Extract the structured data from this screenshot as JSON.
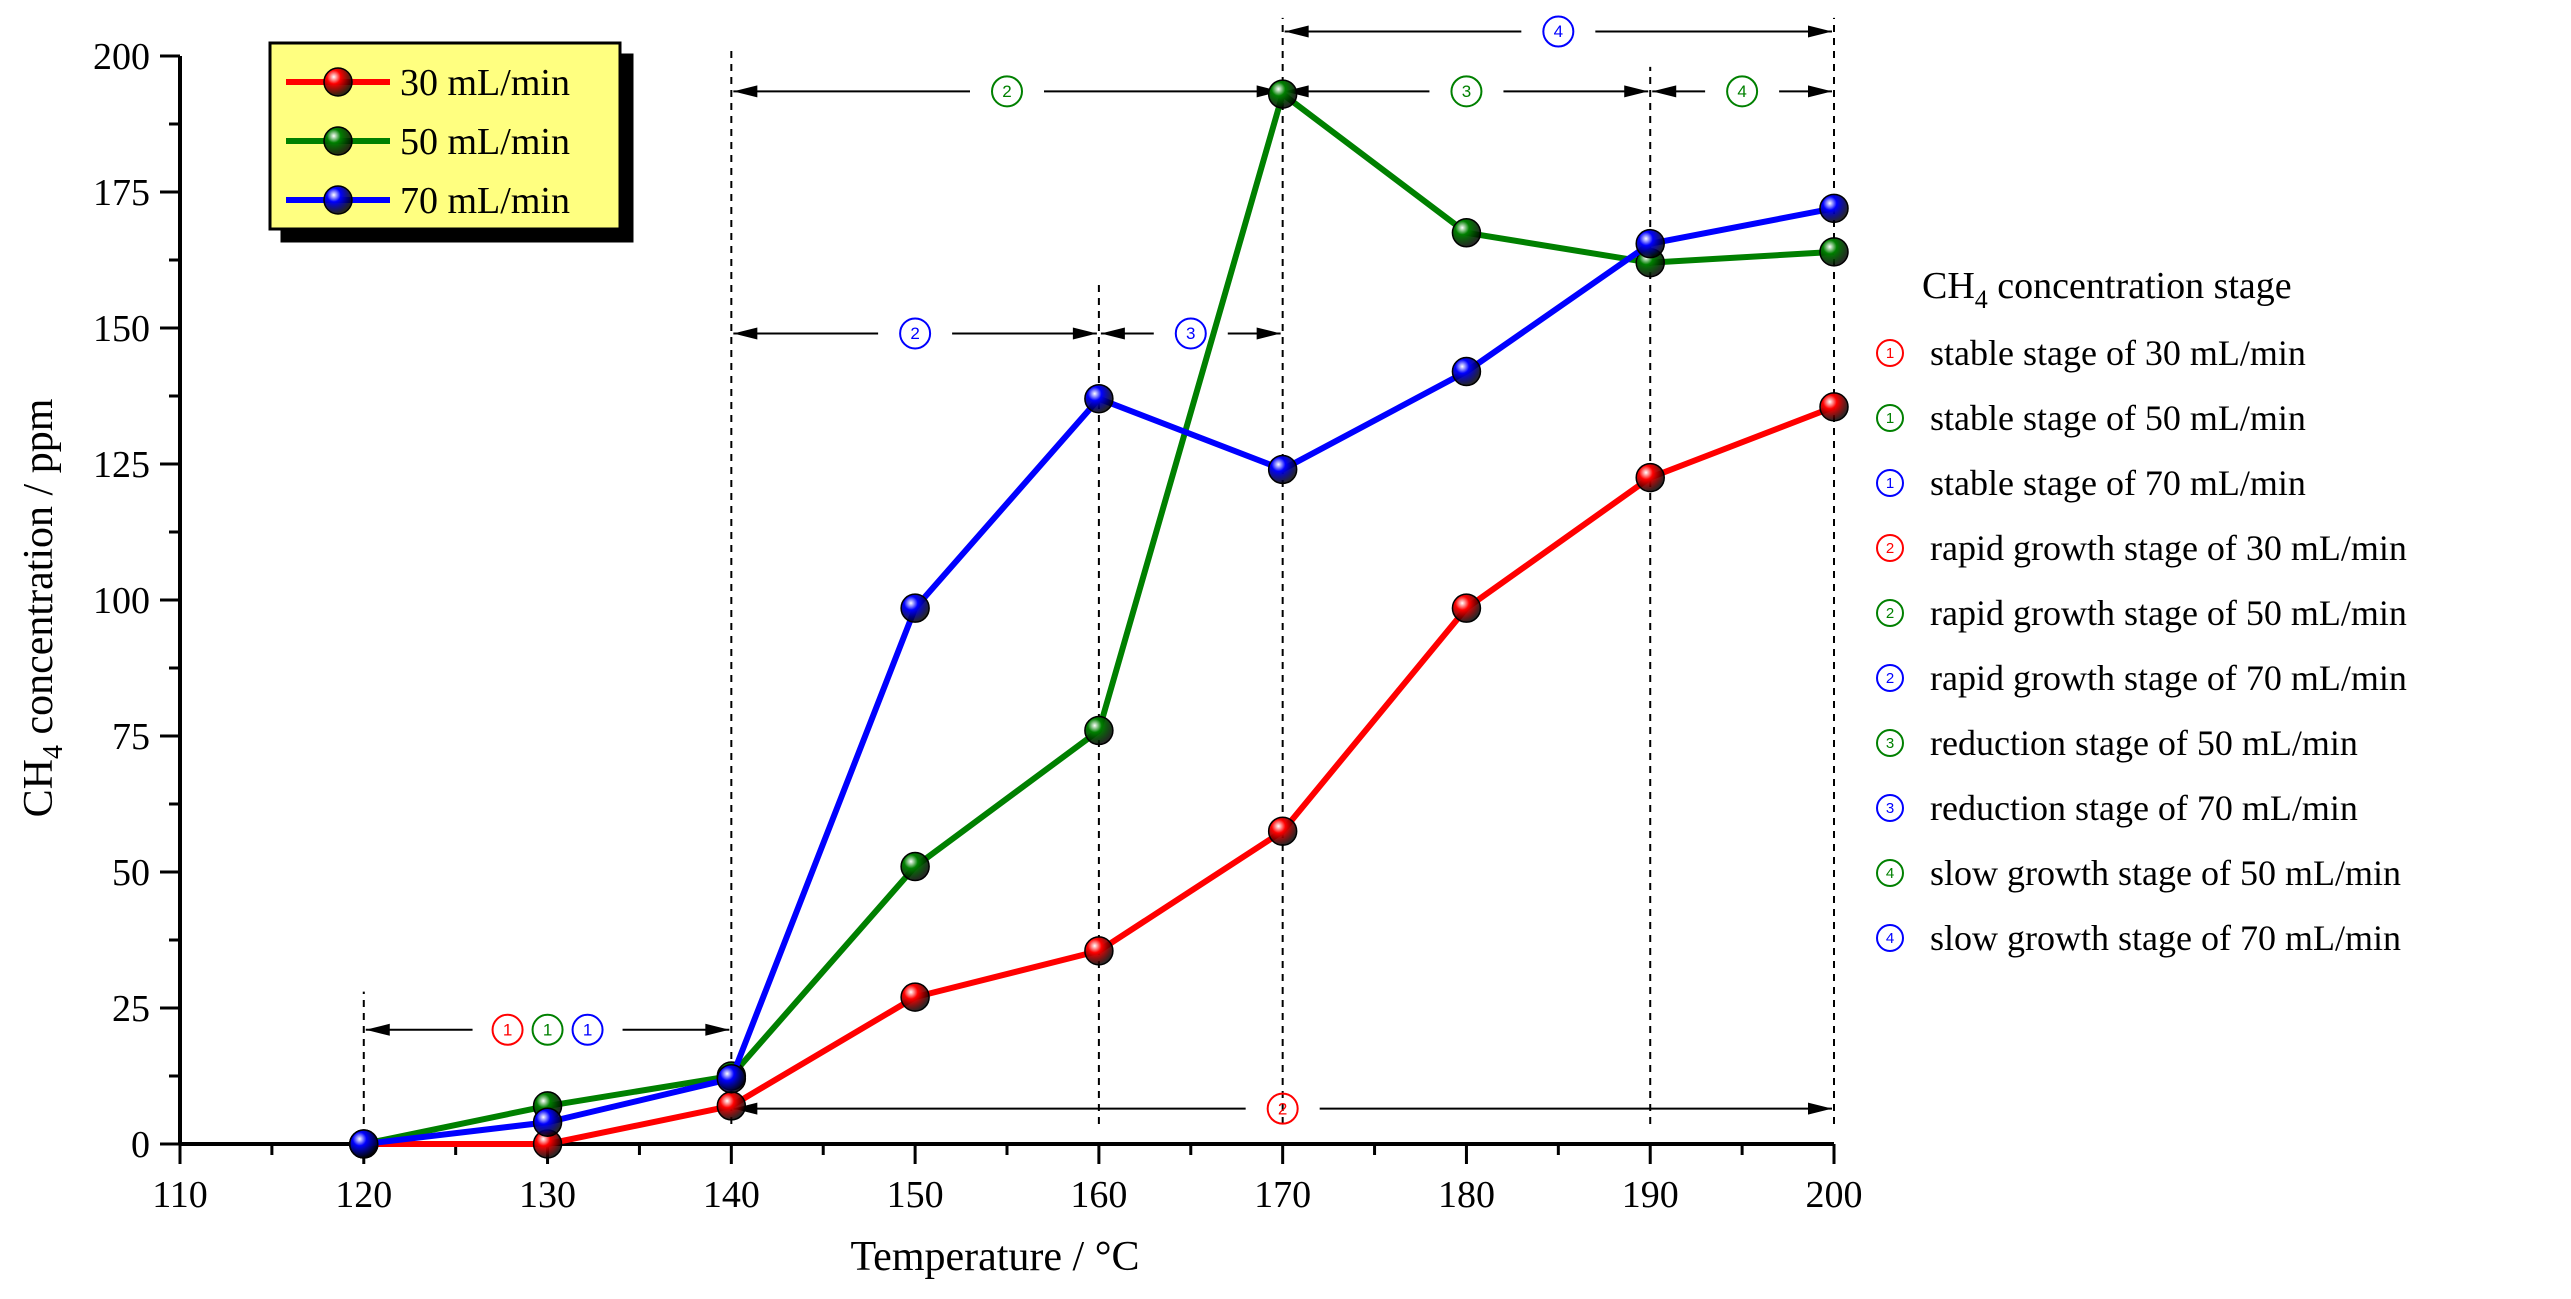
{
  "chart_data": {
    "type": "line",
    "xlabel": "Temperature / °C",
    "ylabel": "CH",
    "ylabel_sub": "4",
    "ylabel_rest": " concentration / ppm",
    "xlim": [
      110,
      200
    ],
    "ylim": [
      0,
      200
    ],
    "xticks": [
      110,
      120,
      130,
      140,
      150,
      160,
      170,
      180,
      190,
      200
    ],
    "yticks": [
      0,
      25,
      50,
      75,
      100,
      125,
      150,
      175,
      200
    ],
    "x": [
      120,
      130,
      140,
      150,
      160,
      170,
      180,
      190,
      200
    ],
    "series": [
      {
        "name": "30 mL/min",
        "color": "#ff0000",
        "values": [
          0,
          0,
          7,
          27,
          35.5,
          57.5,
          98.5,
          122.5,
          135.5
        ]
      },
      {
        "name": "50 mL/min",
        "color": "#008000",
        "values": [
          0,
          7,
          12.5,
          51,
          76,
          193,
          167.5,
          162,
          164
        ]
      },
      {
        "name": "70 mL/min",
        "color": "#0000ff",
        "values": [
          0,
          4,
          12,
          98.5,
          137,
          124,
          142,
          165.5,
          172
        ]
      }
    ],
    "legend_bg": "#ffff80",
    "stage_legend_title_main": "CH",
    "stage_legend_title_sub": "4",
    "stage_legend_title_rest": " concentration stage",
    "stage_legend": [
      {
        "num": "1",
        "color": "#ff0000",
        "text": "stable stage of 30 mL/min"
      },
      {
        "num": "1",
        "color": "#008000",
        "text": "stable stage of  50 mL/min"
      },
      {
        "num": "1",
        "color": "#0000ff",
        "text": "stable stage of 70 mL/min"
      },
      {
        "num": "2",
        "color": "#ff0000",
        "text": "rapid growth stage of  30 mL/min"
      },
      {
        "num": "2",
        "color": "#008000",
        "text": "rapid growth stage of 50 mL/min"
      },
      {
        "num": "2",
        "color": "#0000ff",
        "text": "rapid growth stage of 70 mL/min"
      },
      {
        "num": "3",
        "color": "#008000",
        "text": "reduction stage of 50 mL/min"
      },
      {
        "num": "3",
        "color": "#0000ff",
        "text": "reduction stage of 70 mL/min"
      },
      {
        "num": "4",
        "color": "#008000",
        "text": "slow growth stage of 50 mL/min"
      },
      {
        "num": "4",
        "color": "#0000ff",
        "text": "slow growth stage of 70 mL/min"
      }
    ],
    "dividers": [
      {
        "x": 120,
        "y_top": 28
      },
      {
        "x": 140,
        "y_top": 202
      },
      {
        "x": 160,
        "y_top": 158
      },
      {
        "x": 170,
        "y_top": 207
      },
      {
        "x": 190,
        "y_top": 198
      },
      {
        "x": 200,
        "y_top": 207
      }
    ],
    "stage_arrows": [
      {
        "x1": 120,
        "x2": 140,
        "y": 21,
        "labels": [
          {
            "num": "1",
            "color": "#ff0000"
          },
          {
            "num": "1",
            "color": "#008000"
          },
          {
            "num": "1",
            "color": "#0000ff"
          }
        ]
      },
      {
        "x1": 140,
        "x2": 170,
        "y": 193.5,
        "labels": [
          {
            "num": "2",
            "color": "#008000"
          }
        ]
      },
      {
        "x1": 140,
        "x2": 160,
        "y": 149,
        "labels": [
          {
            "num": "2",
            "color": "#0000ff"
          }
        ]
      },
      {
        "x1": 160,
        "x2": 170,
        "y": 149,
        "labels": [
          {
            "num": "3",
            "color": "#0000ff"
          }
        ]
      },
      {
        "x1": 170,
        "x2": 190,
        "y": 193.5,
        "labels": [
          {
            "num": "3",
            "color": "#008000"
          }
        ]
      },
      {
        "x1": 190,
        "x2": 200,
        "y": 193.5,
        "labels": [
          {
            "num": "4",
            "color": "#008000"
          }
        ]
      },
      {
        "x1": 170,
        "x2": 200,
        "y": 204.5,
        "labels": [
          {
            "num": "4",
            "color": "#0000ff"
          }
        ]
      },
      {
        "x1": 140,
        "x2": 200,
        "y": 6.5,
        "labels": [
          {
            "num": "2",
            "color": "#ff0000"
          }
        ]
      }
    ]
  }
}
